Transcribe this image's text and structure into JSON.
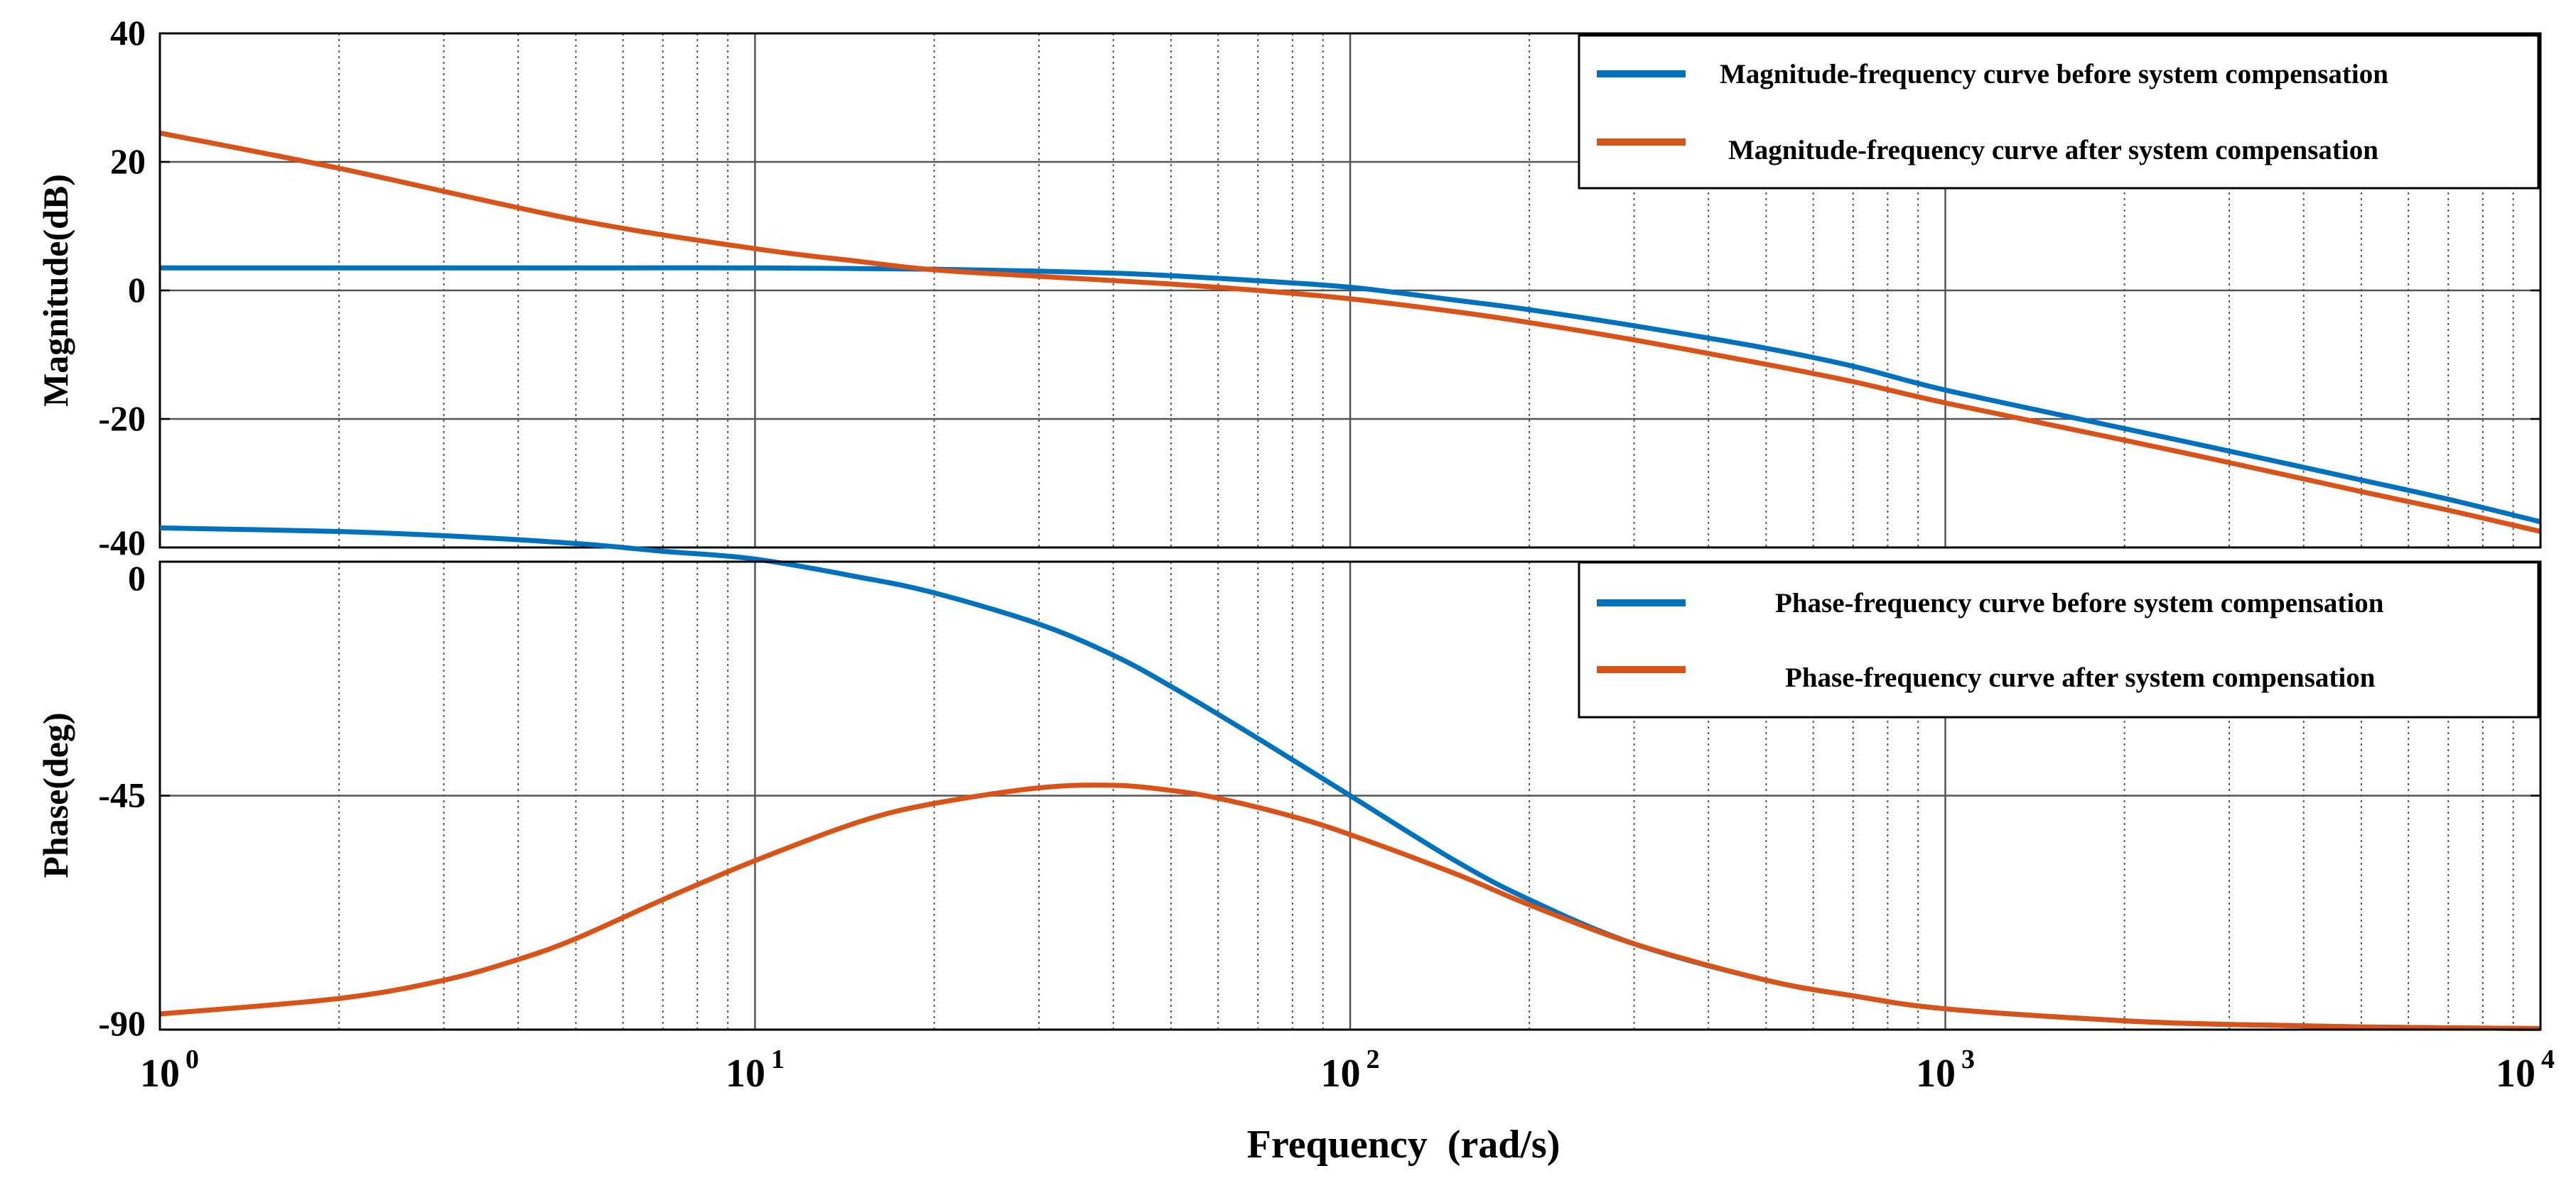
{
  "colors": {
    "before": "#0072BD",
    "after": "#D95319",
    "axis": "#000000",
    "major_grid": "#555555",
    "minor_grid": "#555555",
    "background": "#FFFFFF"
  },
  "chart_data": [
    {
      "type": "line",
      "ylabel": "Magnitude(dB)",
      "x_scale": "log",
      "xlim": [
        1,
        10000
      ],
      "ylim": [
        -40,
        40
      ],
      "yticks": [
        -40,
        -20,
        0,
        20,
        40
      ],
      "ytick_labels": [
        "-40",
        "-20",
        "0",
        "20",
        "40"
      ],
      "grid": true,
      "legend_position": "top-right",
      "series": [
        {
          "name": "Magnitude-frequency curve before system compensation",
          "color": "#0072BD",
          "x": [
            1,
            2,
            5,
            10,
            20,
            30,
            40,
            50,
            70,
            100,
            150,
            200,
            300,
            500,
            700,
            1000,
            2000,
            3000,
            5000,
            7000,
            10000
          ],
          "y": [
            3.5,
            3.5,
            3.5,
            3.5,
            3.3,
            3.0,
            2.7,
            2.3,
            1.5,
            0.5,
            -1.5,
            -3.0,
            -5.5,
            -9.0,
            -11.8,
            -15.5,
            -21.5,
            -25.0,
            -29.5,
            -32.5,
            -36.0
          ]
        },
        {
          "name": "Magnitude-frequency curve after system compensation",
          "color": "#D95319",
          "x": [
            1,
            2,
            5,
            10,
            15,
            20,
            30,
            50,
            70,
            100,
            150,
            200,
            300,
            500,
            700,
            1000,
            2000,
            3000,
            5000,
            7000,
            10000
          ],
          "y": [
            24.5,
            19.0,
            11.0,
            6.5,
            4.5,
            3.2,
            2.2,
            1.0,
            0.0,
            -1.3,
            -3.3,
            -5.0,
            -7.7,
            -11.5,
            -14.2,
            -17.5,
            -23.3,
            -26.8,
            -31.3,
            -34.2,
            -37.5
          ]
        }
      ]
    },
    {
      "type": "line",
      "ylabel": "Phase(deg)",
      "xlabel": "Frequency  (rad/s)",
      "x_scale": "log",
      "xlim": [
        1,
        10000
      ],
      "ylim": [
        -90,
        0
      ],
      "yticks": [
        0,
        -45,
        -90
      ],
      "ytick_labels": [
        "0",
        "-45",
        "-90"
      ],
      "xticks": [
        1,
        10,
        100,
        1000,
        10000
      ],
      "xtick_labels": [
        {
          "base": "10",
          "exp": "0"
        },
        {
          "base": "10",
          "exp": "1"
        },
        {
          "base": "10",
          "exp": "2"
        },
        {
          "base": "10",
          "exp": "3"
        },
        {
          "base": "10",
          "exp": "4"
        }
      ],
      "grid": true,
      "legend_position": "top-right",
      "series": [
        {
          "name": "Phase-frequency curve before system compensation",
          "color": "#0072BD",
          "x": [
            1,
            2,
            3,
            5,
            7,
            10,
            15,
            20,
            30,
            40,
            50,
            70,
            100,
            150,
            200,
            300,
            500,
            700,
            1000,
            2000,
            3000,
            5000,
            10000
          ],
          "y": [
            6.5,
            5.8,
            5.0,
            3.5,
            2.0,
            0.5,
            -3.0,
            -6.0,
            -12.0,
            -18.0,
            -24.0,
            -34.0,
            -45.0,
            -57.5,
            -65.0,
            -73.5,
            -80.5,
            -83.5,
            -86.0,
            -88.3,
            -89.0,
            -89.5,
            -89.8
          ]
        },
        {
          "name": "Phase-frequency curve after system compensation",
          "color": "#D95319",
          "x": [
            1,
            2,
            3,
            4,
            5,
            7,
            10,
            15,
            20,
            30,
            40,
            50,
            60,
            80,
            100,
            150,
            200,
            300,
            500,
            700,
            1000,
            2000,
            3000,
            5000,
            10000
          ],
          "y": [
            -87.0,
            -84.0,
            -80.5,
            -76.5,
            -72.5,
            -65.0,
            -57.5,
            -50.0,
            -46.5,
            -43.5,
            -43.0,
            -44.0,
            -45.5,
            -49.0,
            -52.5,
            -60.0,
            -66.0,
            -73.5,
            -80.5,
            -83.5,
            -86.0,
            -88.3,
            -89.0,
            -89.5,
            -89.8
          ]
        }
      ]
    }
  ]
}
